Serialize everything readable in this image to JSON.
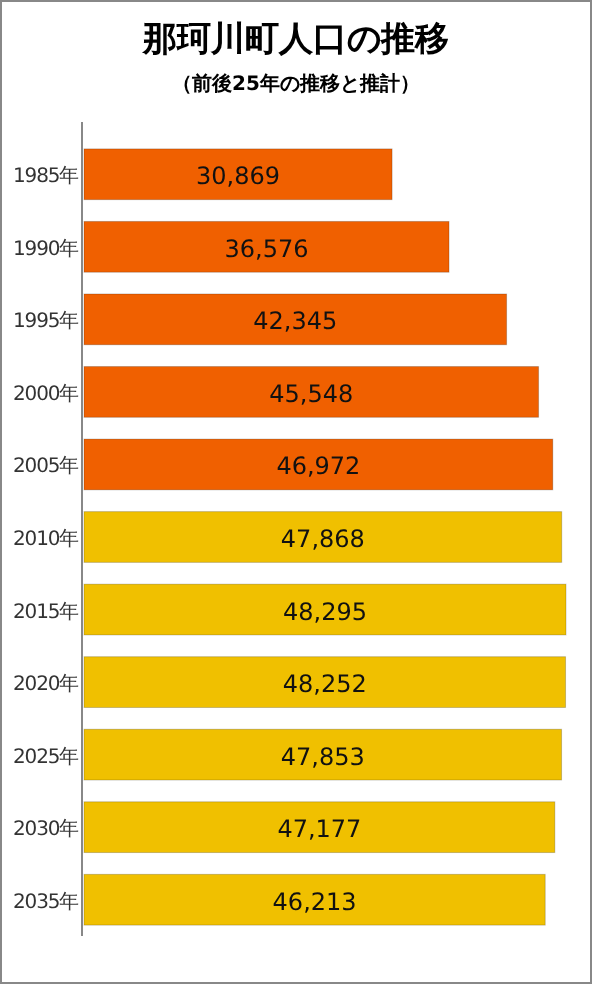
{
  "chart_data": {
    "type": "bar",
    "orientation": "horizontal",
    "title": "那珂川町人口の推移",
    "subtitle": "（前後25年の推移と推計）",
    "categories": [
      "1985年",
      "1990年",
      "1995年",
      "2000年",
      "2005年",
      "2010年",
      "2015年",
      "2020年",
      "2025年",
      "2030年",
      "2035年"
    ],
    "values": [
      30869,
      36576,
      42345,
      45548,
      46972,
      47868,
      48295,
      48252,
      47853,
      47177,
      46213
    ],
    "colors": [
      "#f06000",
      "#f06000",
      "#f06000",
      "#f06000",
      "#f06000",
      "#f0c000",
      "#f0c000",
      "#f0c000",
      "#f0c000",
      "#f0c000",
      "#f0c000"
    ],
    "value_labels": [
      "30,869",
      "36,576",
      "42,345",
      "45,548",
      "46,972",
      "47,868",
      "48,295",
      "48,252",
      "47,853",
      "47,177",
      "46,213"
    ]
  }
}
